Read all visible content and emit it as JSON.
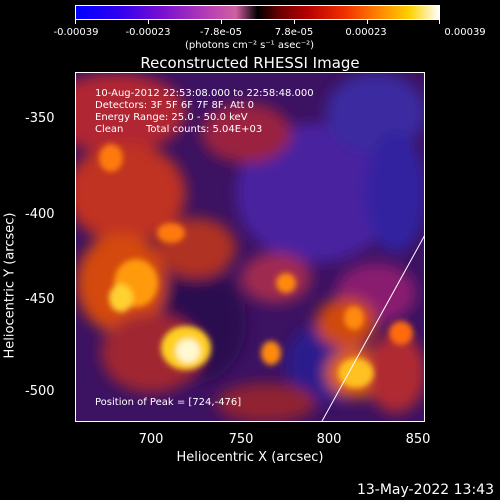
{
  "colorbar": {
    "tick_labels": [
      "-0.00039",
      "-0.00023",
      "-7.8e-05",
      "7.8e-05",
      "0.00023",
      "0.00039"
    ],
    "units": "(photons cm⁻² s⁻¹ asec⁻²)"
  },
  "title": "Reconstructed RHESSI Image",
  "info": {
    "time_range": "10-Aug-2012 22:53:08.000 to 22:58:48.000",
    "detectors": "Detectors: 3F 5F 6F 7F 8F, Att 0",
    "energy_range": "Energy Range: 25.0 - 50.0 keV",
    "algorithm": "Clean",
    "total_counts": "Total counts: 5.04E+03",
    "peak_position": "Position of Peak = [724,-476]"
  },
  "axes": {
    "xlabel": "Heliocentric X (arcsec)",
    "ylabel": "Heliocentric Y (arcsec)",
    "x_ticks": [
      "700",
      "750",
      "800",
      "850"
    ],
    "y_ticks": [
      "-350",
      "-400",
      "-450",
      "-500"
    ]
  },
  "footer": {
    "date_stamp": "13-May-2022 13:43"
  }
}
